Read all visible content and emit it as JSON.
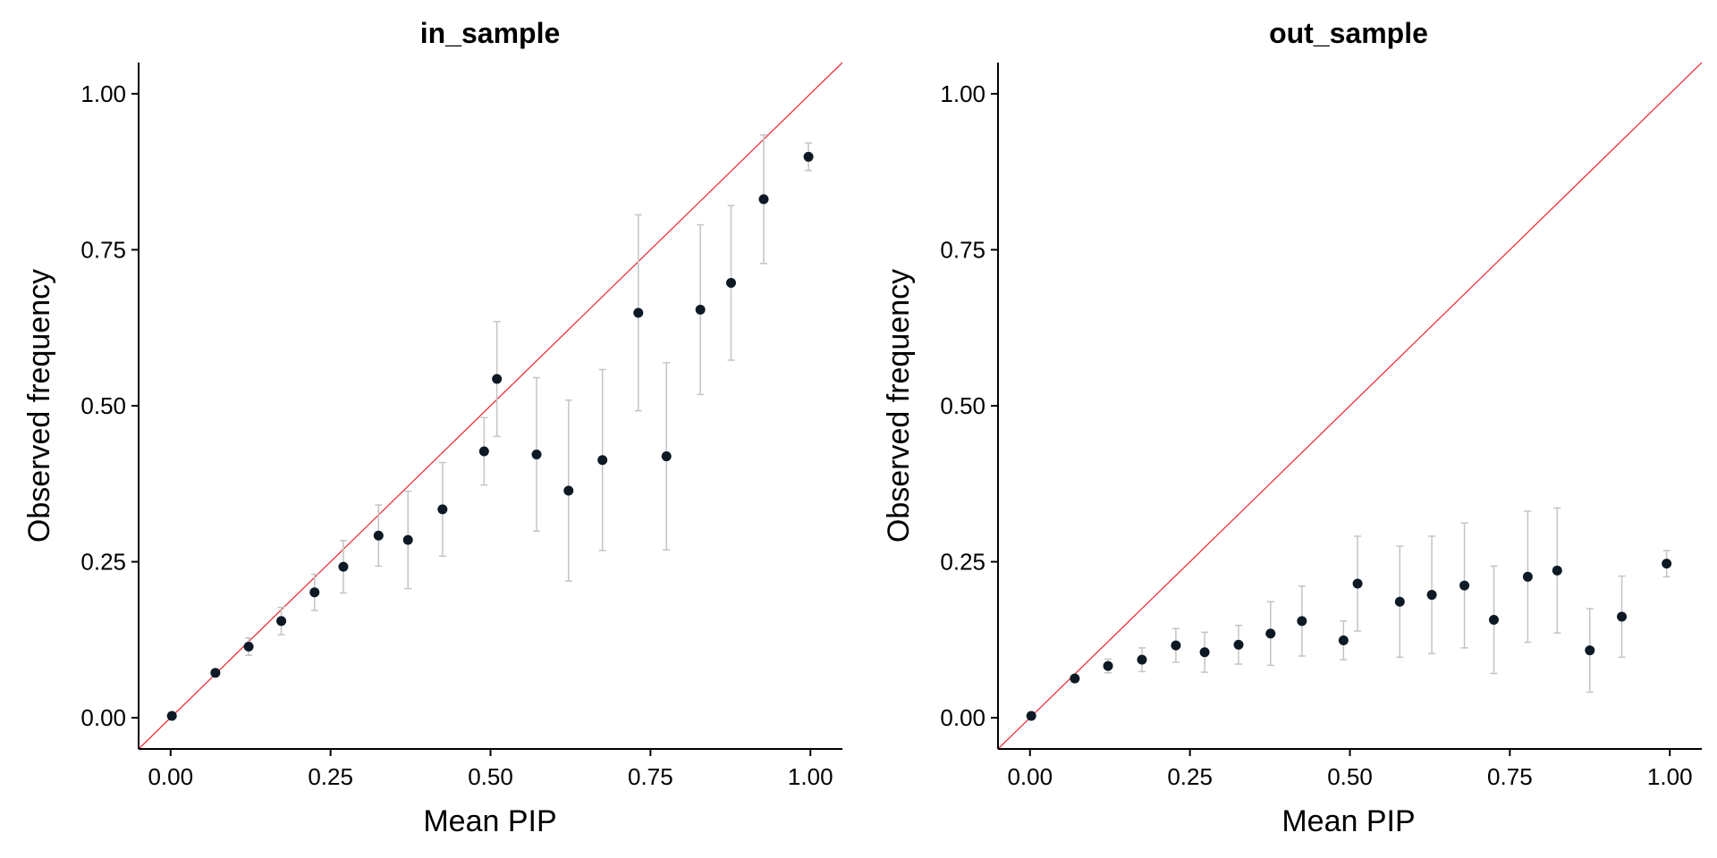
{
  "chart_data": [
    {
      "type": "scatter",
      "title": "in_sample",
      "xlabel": "Mean PIP",
      "ylabel": "Observed frequency",
      "xlim": [
        -0.05,
        1.05
      ],
      "ylim": [
        -0.05,
        1.05
      ],
      "xticks": [
        "0.00",
        "0.25",
        "0.50",
        "0.75",
        "1.00"
      ],
      "yticks": [
        "0.00",
        "0.25",
        "0.50",
        "0.75",
        "1.00"
      ],
      "reference_line": "y = x",
      "points": [
        {
          "x": 0.002,
          "y": 0.003,
          "lo": 0.003,
          "hi": 0.003
        },
        {
          "x": 0.07,
          "y": 0.072,
          "lo": 0.072,
          "hi": 0.072
        },
        {
          "x": 0.122,
          "y": 0.114,
          "lo": 0.1,
          "hi": 0.128
        },
        {
          "x": 0.173,
          "y": 0.155,
          "lo": 0.133,
          "hi": 0.177
        },
        {
          "x": 0.225,
          "y": 0.201,
          "lo": 0.172,
          "hi": 0.23
        },
        {
          "x": 0.27,
          "y": 0.242,
          "lo": 0.2,
          "hi": 0.284
        },
        {
          "x": 0.325,
          "y": 0.292,
          "lo": 0.243,
          "hi": 0.341
        },
        {
          "x": 0.371,
          "y": 0.285,
          "lo": 0.207,
          "hi": 0.363
        },
        {
          "x": 0.425,
          "y": 0.334,
          "lo": 0.259,
          "hi": 0.409
        },
        {
          "x": 0.49,
          "y": 0.427,
          "lo": 0.373,
          "hi": 0.481
        },
        {
          "x": 0.51,
          "y": 0.543,
          "lo": 0.451,
          "hi": 0.635
        },
        {
          "x": 0.572,
          "y": 0.422,
          "lo": 0.299,
          "hi": 0.545
        },
        {
          "x": 0.622,
          "y": 0.364,
          "lo": 0.219,
          "hi": 0.509
        },
        {
          "x": 0.675,
          "y": 0.413,
          "lo": 0.268,
          "hi": 0.558
        },
        {
          "x": 0.731,
          "y": 0.649,
          "lo": 0.492,
          "hi": 0.806
        },
        {
          "x": 0.775,
          "y": 0.419,
          "lo": 0.269,
          "hi": 0.569
        },
        {
          "x": 0.828,
          "y": 0.654,
          "lo": 0.518,
          "hi": 0.79
        },
        {
          "x": 0.876,
          "y": 0.697,
          "lo": 0.573,
          "hi": 0.821
        },
        {
          "x": 0.927,
          "y": 0.831,
          "lo": 0.728,
          "hi": 0.934
        },
        {
          "x": 0.997,
          "y": 0.899,
          "lo": 0.877,
          "hi": 0.921
        }
      ]
    },
    {
      "type": "scatter",
      "title": "out_sample",
      "xlabel": "Mean PIP",
      "ylabel": "Observed frequency",
      "xlim": [
        -0.05,
        1.05
      ],
      "ylim": [
        -0.05,
        1.05
      ],
      "xticks": [
        "0.00",
        "0.25",
        "0.50",
        "0.75",
        "1.00"
      ],
      "yticks": [
        "0.00",
        "0.25",
        "0.50",
        "0.75",
        "1.00"
      ],
      "reference_line": "y = x",
      "points": [
        {
          "x": 0.002,
          "y": 0.003,
          "lo": 0.003,
          "hi": 0.003
        },
        {
          "x": 0.07,
          "y": 0.063,
          "lo": 0.063,
          "hi": 0.063
        },
        {
          "x": 0.122,
          "y": 0.083,
          "lo": 0.072,
          "hi": 0.094
        },
        {
          "x": 0.175,
          "y": 0.093,
          "lo": 0.074,
          "hi": 0.112
        },
        {
          "x": 0.228,
          "y": 0.116,
          "lo": 0.089,
          "hi": 0.143
        },
        {
          "x": 0.273,
          "y": 0.105,
          "lo": 0.073,
          "hi": 0.137
        },
        {
          "x": 0.326,
          "y": 0.117,
          "lo": 0.086,
          "hi": 0.148
        },
        {
          "x": 0.376,
          "y": 0.135,
          "lo": 0.084,
          "hi": 0.186
        },
        {
          "x": 0.425,
          "y": 0.155,
          "lo": 0.099,
          "hi": 0.211
        },
        {
          "x": 0.49,
          "y": 0.124,
          "lo": 0.093,
          "hi": 0.155
        },
        {
          "x": 0.512,
          "y": 0.215,
          "lo": 0.139,
          "hi": 0.291
        },
        {
          "x": 0.578,
          "y": 0.186,
          "lo": 0.097,
          "hi": 0.275
        },
        {
          "x": 0.628,
          "y": 0.197,
          "lo": 0.103,
          "hi": 0.291
        },
        {
          "x": 0.679,
          "y": 0.212,
          "lo": 0.112,
          "hi": 0.312
        },
        {
          "x": 0.725,
          "y": 0.157,
          "lo": 0.071,
          "hi": 0.243
        },
        {
          "x": 0.778,
          "y": 0.226,
          "lo": 0.121,
          "hi": 0.331
        },
        {
          "x": 0.824,
          "y": 0.236,
          "lo": 0.136,
          "hi": 0.336
        },
        {
          "x": 0.875,
          "y": 0.108,
          "lo": 0.041,
          "hi": 0.175
        },
        {
          "x": 0.925,
          "y": 0.162,
          "lo": 0.097,
          "hi": 0.227
        },
        {
          "x": 0.995,
          "y": 0.247,
          "lo": 0.226,
          "hi": 0.268
        }
      ]
    }
  ],
  "colors": {
    "point": "#0d1a26",
    "errorbar": "#c4c4c4",
    "reference_line": "#e8242b",
    "axis": "#000000"
  }
}
